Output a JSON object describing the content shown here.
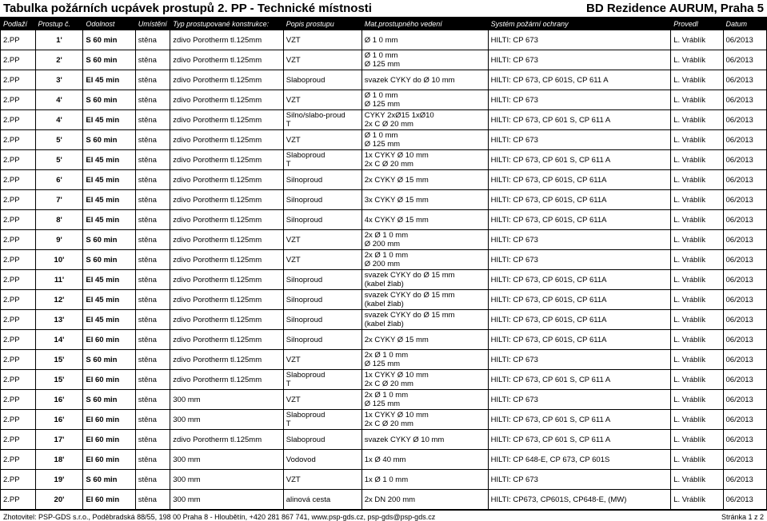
{
  "title_left": "Tabulka požárních ucpávek prostupů 2. PP - Technické místnosti",
  "title_right": "BD Rezidence AURUM, Praha 5",
  "headers": [
    "Podlaží",
    "Prostup č.",
    "Odolnost",
    "Umístění",
    "Typ prostupované konstrukce:",
    "Popis prostupu",
    "Mat.prostupného vedení",
    "Systém požární ochrany",
    "Provedl",
    "Datum"
  ],
  "col_widths": [
    "40px",
    "55px",
    "60px",
    "40px",
    "130px",
    "90px",
    "145px",
    "210px",
    "60px",
    "50px"
  ],
  "rows": [
    [
      "2.PP",
      "1'",
      "S 60 min",
      "stěna",
      "zdivo Porotherm tl.125mm",
      "VZT",
      "Ø 1 0 mm",
      "HILTI: CP 673",
      "L. Vráblík",
      "06/2013"
    ],
    [
      "2.PP",
      "2'",
      "S 60 min",
      "stěna",
      "zdivo Porotherm tl.125mm",
      "VZT",
      "Ø 1 0 mm\nØ 125 mm",
      "HILTI: CP 673",
      "L. Vráblík",
      "06/2013"
    ],
    [
      "2.PP",
      "3'",
      "EI 45 min",
      "stěna",
      "zdivo Porotherm tl.125mm",
      "Slaboproud",
      "svazek CYKY do Ø 10 mm",
      "HILTI: CP 673, CP 601S, CP 611 A",
      "L. Vráblík",
      "06/2013"
    ],
    [
      "2.PP",
      "4'",
      "S 60 min",
      "stěna",
      "zdivo Porotherm tl.125mm",
      "VZT",
      "Ø 1 0 mm\nØ 125 mm",
      "HILTI: CP 673",
      "L. Vráblík",
      "06/2013"
    ],
    [
      "2.PP",
      "4'",
      "EI 45 min",
      "stěna",
      "zdivo Porotherm tl.125mm",
      "Silno/slabo-proud\nT",
      "CYKY 2xØ15 1xØ10\n2x C   Ø 20 mm",
      "HILTI: CP 673, CP 601 S, CP 611 A",
      "L. Vráblík",
      "06/2013"
    ],
    [
      "2.PP",
      "5'",
      "S 60 min",
      "stěna",
      "zdivo Porotherm tl.125mm",
      "VZT",
      "Ø 1 0 mm\nØ 125 mm",
      "HILTI: CP 673",
      "L. Vráblík",
      "06/2013"
    ],
    [
      "2.PP",
      "5'",
      "EI 45 min",
      "stěna",
      "zdivo Porotherm tl.125mm",
      "Slaboproud\nT",
      "1x CYKY Ø 10 mm\n2x C   Ø 20 mm",
      "HILTI: CP 673, CP 601 S, CP 611 A",
      "L. Vráblík",
      "06/2013"
    ],
    [
      "2.PP",
      "6'",
      "EI 45 min",
      "stěna",
      "zdivo Porotherm tl.125mm",
      "Silnoproud",
      "2x CYKY Ø 15 mm",
      "HILTI: CP 673, CP 601S, CP 611A",
      "L. Vráblík",
      "06/2013"
    ],
    [
      "2.PP",
      "7'",
      "EI 45 min",
      "stěna",
      "zdivo Porotherm tl.125mm",
      "Silnoproud",
      "3x CYKY Ø 15 mm",
      "HILTI: CP 673, CP 601S, CP 611A",
      "L. Vráblík",
      "06/2013"
    ],
    [
      "2.PP",
      "8'",
      "EI 45 min",
      "stěna",
      "zdivo Porotherm tl.125mm",
      "Silnoproud",
      "4x CYKY Ø 15 mm",
      "HILTI: CP 673, CP 601S, CP 611A",
      "L. Vráblík",
      "06/2013"
    ],
    [
      "2.PP",
      "9'",
      "S 60 min",
      "stěna",
      "zdivo Porotherm tl.125mm",
      "VZT",
      "2x           Ø 1 0 mm\n             Ø 200 mm",
      "HILTI: CP 673",
      "L. Vráblík",
      "06/2013"
    ],
    [
      "2.PP",
      "10'",
      "S 60 min",
      "stěna",
      "zdivo Porotherm tl.125mm",
      "VZT",
      "2x           Ø 1 0 mm\n             Ø 200 mm",
      "HILTI: CP 673",
      "L. Vráblík",
      "06/2013"
    ],
    [
      "2.PP",
      "11'",
      "EI 45 min",
      "stěna",
      "zdivo Porotherm tl.125mm",
      "Silnoproud",
      "svazek CYKY do Ø 15 mm\n(kabel žlab)",
      "HILTI: CP 673, CP 601S, CP 611A",
      "L. Vráblík",
      "06/2013"
    ],
    [
      "2.PP",
      "12'",
      "EI 45 min",
      "stěna",
      "zdivo Porotherm tl.125mm",
      "Silnoproud",
      "svazek CYKY do Ø 15 mm\n(kabel žlab)",
      "HILTI: CP 673, CP 601S, CP 611A",
      "L. Vráblík",
      "06/2013"
    ],
    [
      "2.PP",
      "13'",
      "EI 45 min",
      "stěna",
      "zdivo Porotherm tl.125mm",
      "Silnoproud",
      "svazek CYKY do Ø 15 mm\n(kabel žlab)",
      "HILTI: CP 673, CP 601S, CP 611A",
      "L. Vráblík",
      "06/2013"
    ],
    [
      "2.PP",
      "14'",
      "EI 60 min",
      "stěna",
      "zdivo Porotherm tl.125mm",
      "Silnoproud",
      "2x CYKY Ø 15 mm",
      "HILTI: CP 673, CP 601S, CP 611A",
      "L. Vráblík",
      "06/2013"
    ],
    [
      "2.PP",
      "15'",
      "S 60 min",
      "stěna",
      "zdivo Porotherm tl.125mm",
      "VZT",
      "2x           Ø 1 0 mm\n             Ø 125 mm",
      "HILTI: CP 673",
      "L. Vráblík",
      "06/2013"
    ],
    [
      "2.PP",
      "15'",
      "EI 60 min",
      "stěna",
      "zdivo Porotherm tl.125mm",
      "Slaboproud\nT",
      "1x CYKY Ø 10 mm\n2x C   Ø 20 mm",
      "HILTI: CP 673, CP 601 S, CP 611 A",
      "L. Vráblík",
      "06/2013"
    ],
    [
      "2.PP",
      "16'",
      "S 60 min",
      "stěna",
      "300 mm",
      "VZT",
      "2x           Ø 1 0 mm\n             Ø 125 mm",
      "HILTI: CP 673",
      "L. Vráblík",
      "06/2013"
    ],
    [
      "2.PP",
      "16'",
      "EI 60 min",
      "stěna",
      "300 mm",
      "Slaboproud\nT",
      "1x CYKY Ø 10 mm\n2x C   Ø 20 mm",
      "HILTI: CP 673, CP 601 S, CP 611 A",
      "L. Vráblík",
      "06/2013"
    ],
    [
      "2.PP",
      "17'",
      "EI 60 min",
      "stěna",
      "zdivo Porotherm tl.125mm",
      "Slaboproud",
      "svazek CYKY Ø 10 mm",
      "HILTI: CP 673, CP 601 S, CP 611 A",
      "L. Vráblík",
      "06/2013"
    ],
    [
      "2.PP",
      "18'",
      "EI 60 min",
      "stěna",
      "300 mm",
      "Vodovod",
      "1x      Ø 40 mm",
      "HILTI: CP 648-E, CP 673, CP 601S",
      "L. Vráblík",
      "06/2013"
    ],
    [
      "2.PP",
      "19'",
      "S 60 min",
      "stěna",
      "300 mm",
      "VZT",
      "1x      Ø 1 0 mm",
      "HILTI: CP 673",
      "L. Vráblík",
      "06/2013"
    ],
    [
      "2.PP",
      "20'",
      "EI 60 min",
      "stěna",
      "300 mm",
      "alinová cesta",
      "2x DN 200 mm",
      "HILTI: CP673, CP601S, CP648-E, (MW)",
      "L. Vráblík",
      "06/2013"
    ]
  ],
  "footer_left": "Zhotovitel: PSP-GDS s.r.o., Poděbradská 88/55, 198 00 Praha 8 - Hloubětín, +420 281 867 741, www.psp-gds.cz, psp-gds@psp-gds.cz",
  "footer_right": "Stránka 1 z 2"
}
